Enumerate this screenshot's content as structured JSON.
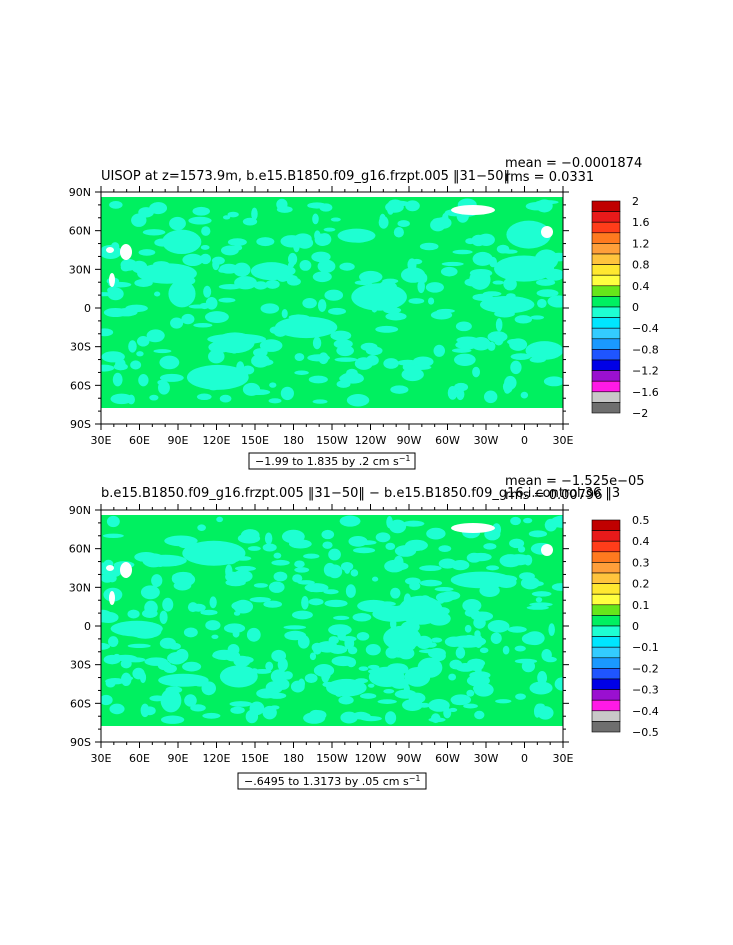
{
  "chart_data": [
    {
      "type": "heatmap",
      "title": "UISOP at z=1573.9m, b.e15.B1850.f09_g16.frzpt.005 ‖31−50‖",
      "stats": {
        "mean": "mean = −0.0001874",
        "rms": "rms = 0.0331"
      },
      "x_ticks": [
        "30E",
        "60E",
        "90E",
        "120E",
        "150E",
        "180",
        "150W",
        "120W",
        "90W",
        "60W",
        "30W",
        "0",
        "30E"
      ],
      "y_ticks": [
        "90N",
        "60N",
        "30N",
        "0",
        "30S",
        "60S",
        "90S"
      ],
      "xlim": [
        30,
        390
      ],
      "ylim": [
        -90,
        90
      ],
      "contour_info": "−1.99 to 1.835 by .2 cm s",
      "contour_unit_exp": "−1",
      "colorbar": {
        "labels": [
          "2",
          "1.6",
          "1.2",
          "0.8",
          "0.4",
          "0",
          "−0.4",
          "−0.8",
          "−1.2",
          "−1.6",
          "−2"
        ],
        "colors": [
          "#c00000",
          "#e81a1a",
          "#ff3d1a",
          "#ff7a1f",
          "#ff9f3a",
          "#ffc43d",
          "#ffe830",
          "#ffff40",
          "#66e61a",
          "#00f060",
          "#1effd2",
          "#00e6ff",
          "#33ccff",
          "#1a99ff",
          "#1f55ff",
          "#0000e6",
          "#9a10d0",
          "#ff1ae6",
          "#c8c8c8",
          "#6e6e6e"
        ]
      },
      "field": {
        "dominant": "#00f060",
        "secondary": "#1effd2",
        "coverage_secondary": 0.3,
        "missing": "#ffffff"
      }
    },
    {
      "type": "heatmap",
      "title": "b.e15.B1850.f09_g16.frzpt.005 ‖31−50‖ − b.e15.B1850.f09_g16.i.control.36 ‖3",
      "stats": {
        "mean": "mean = −1.525e−05",
        "rms": "rms = 0.00796"
      },
      "x_ticks": [
        "30E",
        "60E",
        "90E",
        "120E",
        "150E",
        "180",
        "150W",
        "120W",
        "90W",
        "60W",
        "30W",
        "0",
        "30E"
      ],
      "y_ticks": [
        "90N",
        "60N",
        "30N",
        "0",
        "30S",
        "60S",
        "90S"
      ],
      "xlim": [
        30,
        390
      ],
      "ylim": [
        -90,
        90
      ],
      "contour_info": "−.6495 to 1.3173 by .05 cm s",
      "contour_unit_exp": "−1",
      "colorbar": {
        "labels": [
          "0.5",
          "0.4",
          "0.3",
          "0.2",
          "0.1",
          "0",
          "−0.1",
          "−0.2",
          "−0.3",
          "−0.4",
          "−0.5"
        ],
        "colors": [
          "#c00000",
          "#e81a1a",
          "#ff3d1a",
          "#ff7a1f",
          "#ff9f3a",
          "#ffc43d",
          "#ffe830",
          "#ffff40",
          "#66e61a",
          "#00f060",
          "#1effd2",
          "#00e6ff",
          "#33ccff",
          "#1a99ff",
          "#1f55ff",
          "#0000e6",
          "#9a10d0",
          "#ff1ae6",
          "#c8c8c8",
          "#6e6e6e"
        ]
      },
      "field": {
        "dominant": "#00f060",
        "secondary": "#1effd2",
        "coverage_secondary": 0.38,
        "missing": "#ffffff"
      }
    }
  ]
}
